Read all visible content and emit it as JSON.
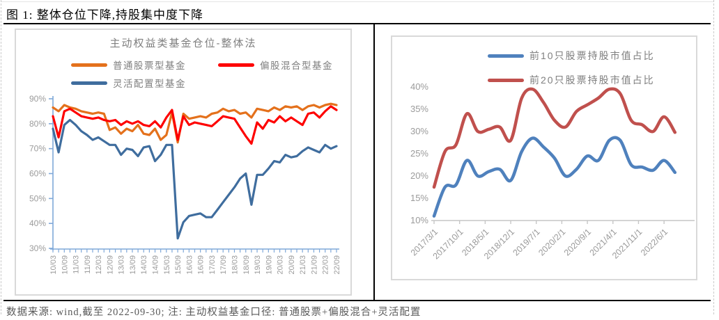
{
  "figure": {
    "title": "图 1: 整体仓位下降,持股集中度下降",
    "footnote": "数据来源: wind,截至 2022-09-30; 注: 主动权益基金口径: 普通股票+偏股混合+灵活配置"
  },
  "chart_data": [
    {
      "id": "fund-position-chart",
      "type": "line",
      "title": "主动权益类基金仓位-整体法",
      "legend_position": "top",
      "grid": false,
      "ylim": [
        30,
        90
      ],
      "y_tick_labels": [
        "30%",
        "40%",
        "50%",
        "60%",
        "70%",
        "80%",
        "90%"
      ],
      "categories": [
        "10/03",
        "10/06",
        "10/09",
        "10/12",
        "11/03",
        "11/06",
        "11/09",
        "11/12",
        "12/03",
        "12/06",
        "12/09",
        "12/12",
        "13/03",
        "13/06",
        "13/09",
        "13/12",
        "14/03",
        "14/06",
        "14/09",
        "14/12",
        "15/03",
        "15/06",
        "15/09",
        "15/12",
        "16/03",
        "16/06",
        "16/09",
        "16/12",
        "17/03",
        "17/06",
        "17/09",
        "17/12",
        "18/03",
        "18/06",
        "18/09",
        "18/12",
        "19/03",
        "19/06",
        "19/09",
        "19/12",
        "20/03",
        "20/06",
        "20/09",
        "20/12",
        "21/03",
        "21/06",
        "21/09",
        "21/12",
        "22/03",
        "22/06",
        "22/09"
      ],
      "x_tick_labels": [
        "10/03",
        "10/09",
        "11/03",
        "11/09",
        "12/03",
        "12/09",
        "13/03",
        "13/09",
        "14/03",
        "14/09",
        "15/03",
        "15/09",
        "16/03",
        "16/09",
        "17/03",
        "17/09",
        "18/03",
        "18/09",
        "19/03",
        "19/09",
        "20/03",
        "20/09",
        "21/03",
        "21/09",
        "22/03",
        "22/09"
      ],
      "series": [
        {
          "name": "普通股票型基金",
          "color": "#E4711C",
          "values": [
            86.5,
            85,
            87.5,
            86.5,
            86,
            85,
            84.5,
            84,
            84.5,
            84,
            77.5,
            78.5,
            76,
            78,
            77,
            79.5,
            76,
            75.5,
            78,
            73.5,
            75.5,
            84.5,
            72.5,
            84,
            82,
            82.5,
            83,
            82.5,
            84,
            84.5,
            86,
            85,
            85.5,
            84,
            84.5,
            82.5,
            86,
            85.5,
            85,
            86.5,
            85.5,
            87,
            86.5,
            87,
            85.5,
            87,
            87.5,
            86.5,
            87.5,
            88,
            87.5
          ]
        },
        {
          "name": "偏股混合型基金",
          "color": "#FE0000",
          "values": [
            83,
            74.5,
            85,
            86,
            84.5,
            83,
            82.5,
            82,
            82.5,
            81.5,
            81,
            81.5,
            79.5,
            81,
            80,
            81,
            79.5,
            79,
            81,
            78.5,
            82.5,
            85.5,
            73.5,
            83,
            79.5,
            80.5,
            80,
            79.5,
            79,
            81,
            83,
            82.5,
            82,
            78.5,
            75,
            72,
            80.5,
            78,
            81.5,
            80.5,
            83,
            81,
            82.5,
            81,
            79.5,
            84,
            84.5,
            82.5,
            85,
            87,
            85.5
          ]
        },
        {
          "name": "灵活配置型基金",
          "color": "#3F6D9E",
          "values": [
            78,
            68.5,
            79.5,
            81.5,
            79.5,
            77,
            75.5,
            73.5,
            74.5,
            73,
            71.5,
            71.5,
            67.5,
            70,
            69.5,
            67,
            70.5,
            71,
            65,
            67.5,
            71.5,
            71.5,
            34,
            40.5,
            43,
            43.5,
            44,
            42.5,
            42.5,
            45.5,
            48.5,
            51.5,
            54.5,
            58,
            60,
            47.5,
            59.5,
            59.5,
            62,
            65,
            64.5,
            67.5,
            66.5,
            67,
            69,
            70.5,
            69.5,
            68.5,
            71.5,
            70,
            71
          ]
        }
      ]
    },
    {
      "id": "holding-concentration-chart",
      "type": "line",
      "title": "",
      "legend_position": "top",
      "grid": false,
      "smoothed": true,
      "ylim": [
        10,
        40
      ],
      "y_tick_labels": [
        "10%",
        "15%",
        "20%",
        "25%",
        "30%",
        "35%",
        "40%"
      ],
      "categories": [
        "2017/03",
        "2017/06",
        "2017/09",
        "2017/12",
        "2018/03",
        "2018/06",
        "2018/09",
        "2018/12",
        "2019/03",
        "2019/06",
        "2019/09",
        "2019/12",
        "2020/03",
        "2020/06",
        "2020/09",
        "2020/12",
        "2021/03",
        "2021/06",
        "2021/09",
        "2021/12",
        "2022/03",
        "2022/06",
        "2022/09"
      ],
      "x_tick_labels": [
        "2017/3/1",
        "2017/10/1",
        "2018/5/1",
        "2018/12/1",
        "2019/7/1",
        "2020/2/1",
        "2020/9/1",
        "2021/4/1",
        "2021/11/1",
        "2022/6/1"
      ],
      "x_tick_positions_months": [
        0,
        7,
        14,
        21,
        28,
        35,
        42,
        49,
        56,
        63
      ],
      "series": [
        {
          "name": "前10只股票持股市值占比",
          "color": "#4F81BD",
          "values": [
            11,
            17.5,
            18,
            23.5,
            20,
            21,
            21.5,
            19,
            25.5,
            28.5,
            26.5,
            24,
            20,
            21.5,
            24.5,
            23.5,
            28,
            28,
            22.5,
            22,
            21.3,
            23.5,
            20.8
          ]
        },
        {
          "name": "前20只股票持股市值占比",
          "color": "#C0504D",
          "values": [
            17.5,
            25.5,
            27,
            34,
            30,
            30.5,
            31,
            28,
            37.5,
            39.5,
            36.5,
            32.5,
            31,
            34.5,
            36,
            37.5,
            39.5,
            38.5,
            32.5,
            31.5,
            30,
            33.3,
            29.8
          ]
        }
      ]
    }
  ]
}
